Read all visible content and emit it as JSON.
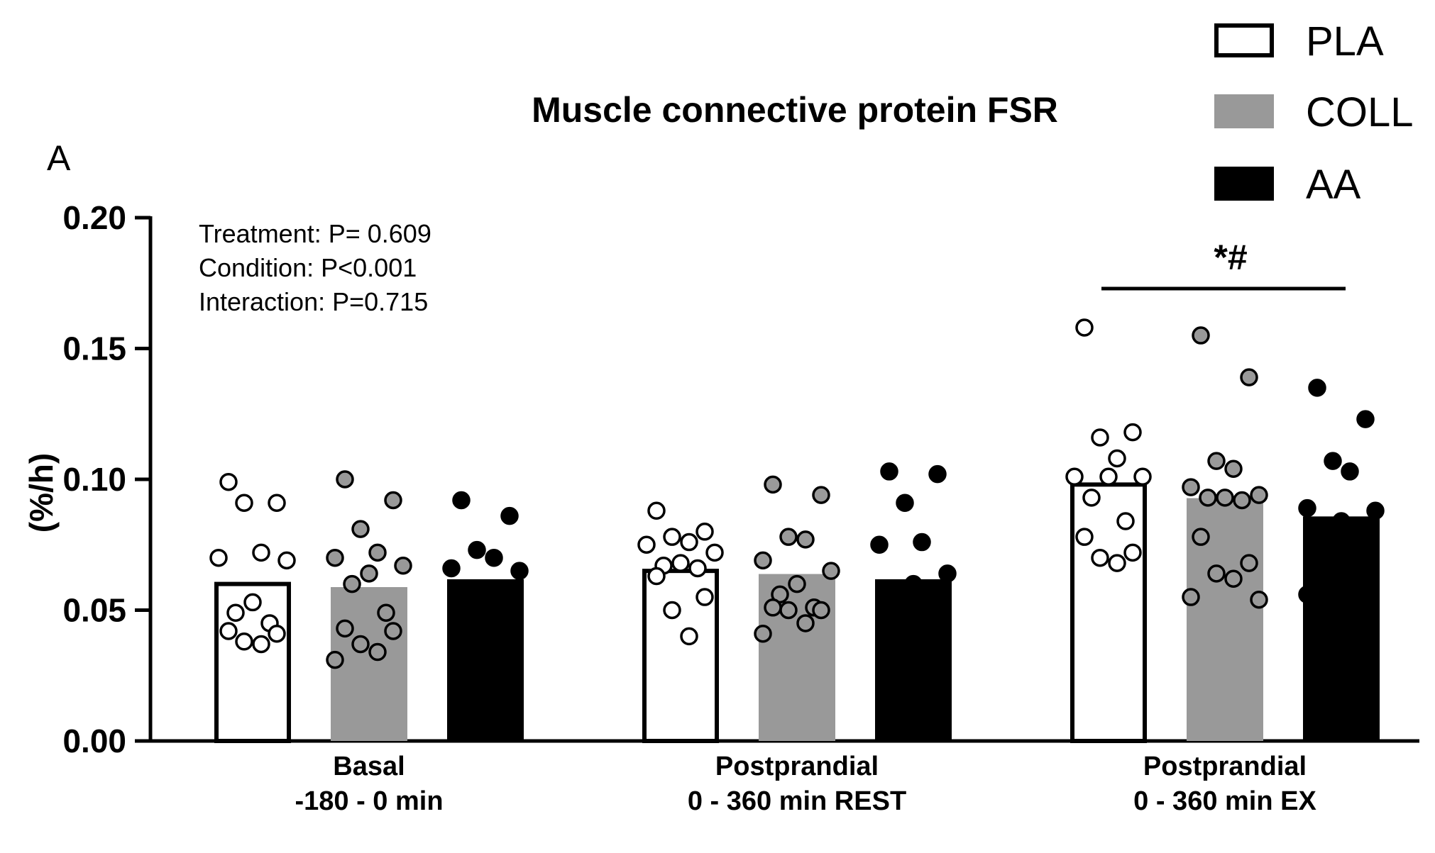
{
  "chart_data": {
    "type": "bar",
    "title": "Muscle connective protein FSR",
    "panel_label": "A",
    "ylabel": "(%/h)",
    "xlabel": "",
    "ylim": [
      0,
      0.2
    ],
    "yticks": [
      "0.00",
      "0.05",
      "0.10",
      "0.15",
      "0.20"
    ],
    "grid": false,
    "legend_position": "top-right",
    "categories": [
      [
        "Basal",
        "-180 - 0 min"
      ],
      [
        "Postprandial",
        "0 - 360 min REST"
      ],
      [
        "Postprandial",
        "0 - 360 min EX"
      ]
    ],
    "series": [
      {
        "name": "PLA",
        "color": "#ffffff",
        "values": [
          0.06,
          0.065,
          0.098
        ],
        "points": [
          [
            0.099,
            0.091,
            0.091,
            0.072,
            0.07,
            0.069,
            0.053,
            0.049,
            0.045,
            0.042,
            0.041,
            0.038,
            0.037
          ],
          [
            0.088,
            0.08,
            0.078,
            0.076,
            0.075,
            0.072,
            0.068,
            0.067,
            0.066,
            0.063,
            0.055,
            0.05,
            0.04
          ],
          [
            0.158,
            0.118,
            0.116,
            0.108,
            0.101,
            0.101,
            0.101,
            0.093,
            0.084,
            0.078,
            0.072,
            0.07,
            0.068
          ]
        ]
      },
      {
        "name": "COLL",
        "color": "#999999",
        "values": [
          0.058,
          0.063,
          0.092
        ],
        "points": [
          [
            0.1,
            0.092,
            0.081,
            0.072,
            0.07,
            0.067,
            0.064,
            0.06,
            0.049,
            0.043,
            0.042,
            0.037,
            0.034,
            0.031
          ],
          [
            0.098,
            0.094,
            0.078,
            0.077,
            0.069,
            0.065,
            0.06,
            0.056,
            0.051,
            0.051,
            0.05,
            0.05,
            0.045,
            0.041
          ],
          [
            0.155,
            0.139,
            0.107,
            0.104,
            0.097,
            0.094,
            0.093,
            0.093,
            0.092,
            0.078,
            0.068,
            0.064,
            0.062,
            0.055,
            0.054
          ]
        ]
      },
      {
        "name": "AA",
        "color": "#000000",
        "values": [
          0.061,
          0.061,
          0.085
        ],
        "points": [
          [
            0.092,
            0.086,
            0.073,
            0.07,
            0.066,
            0.065,
            0.058,
            0.056,
            0.055,
            0.04,
            0.029,
            0.013
          ],
          [
            0.103,
            0.102,
            0.091,
            0.076,
            0.075,
            0.064,
            0.06,
            0.051,
            0.044,
            0.041,
            0.035,
            0.033,
            0.03
          ],
          [
            0.135,
            0.123,
            0.107,
            0.103,
            0.089,
            0.088,
            0.084,
            0.074,
            0.069,
            0.066,
            0.066,
            0.064,
            0.063,
            0.056
          ]
        ]
      }
    ],
    "annotations": {
      "stats": [
        "Treatment: P= 0.609",
        "Condition: P<0.001",
        "Interaction: P=0.715"
      ],
      "significance": "*#",
      "significance_group": 2
    }
  }
}
